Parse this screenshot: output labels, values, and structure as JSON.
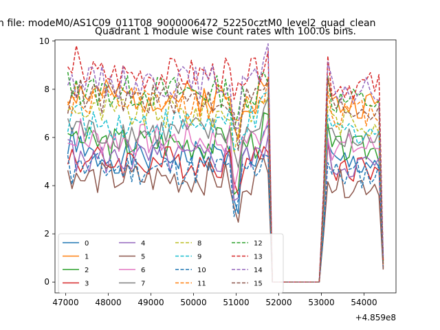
{
  "chart_data": {
    "type": "line",
    "suptitle": "n file: modeM0/AS1C09_011T08_9000006472_52250cztM0_level2_quad_clean",
    "title": "Quadrant 1 module wise count rates with 100.0s bins.",
    "xlabel": "",
    "ylabel": "",
    "offset_text": "+4.859e8",
    "xlim": [
      46750,
      54750
    ],
    "ylim": [
      -0.45,
      10.05
    ],
    "x_ticks": [
      47000,
      48000,
      49000,
      50000,
      51000,
      52000,
      53000,
      54000
    ],
    "y_ticks": [
      0,
      2,
      4,
      6,
      8,
      10
    ],
    "grid": false,
    "legend": {
      "position": "lower-left",
      "columns": 4
    },
    "x_segments": [
      {
        "start": 47050,
        "end": 51750,
        "step": 100
      },
      {
        "start": 51850,
        "end": 52950,
        "step": 100
      },
      {
        "start": 53050,
        "end": 54450,
        "step": 100
      }
    ],
    "series": [
      {
        "name": "0",
        "color": "#1f77b4",
        "dash": "solid",
        "base": 5.2,
        "seed": 1
      },
      {
        "name": "1",
        "color": "#ff7f0e",
        "dash": "solid",
        "base": 7.7,
        "seed": 2
      },
      {
        "name": "2",
        "color": "#2ca02c",
        "dash": "solid",
        "base": 5.8,
        "seed": 3
      },
      {
        "name": "3",
        "color": "#d62728",
        "dash": "solid",
        "base": 5.0,
        "seed": 4
      },
      {
        "name": "4",
        "color": "#9467bd",
        "dash": "solid",
        "base": 5.1,
        "seed": 5
      },
      {
        "name": "5",
        "color": "#8c564b",
        "dash": "solid",
        "base": 4.3,
        "seed": 6
      },
      {
        "name": "6",
        "color": "#e377c2",
        "dash": "solid",
        "base": 5.9,
        "seed": 7
      },
      {
        "name": "7",
        "color": "#7f7f7f",
        "dash": "solid",
        "base": 6.2,
        "seed": 8
      },
      {
        "name": "8",
        "color": "#bcbd22",
        "dash": "dashed",
        "base": 7.0,
        "seed": 9
      },
      {
        "name": "9",
        "color": "#17becf",
        "dash": "dashed",
        "base": 6.6,
        "seed": 10
      },
      {
        "name": "10",
        "color": "#1f77b4",
        "dash": "dashed",
        "base": 4.7,
        "seed": 11
      },
      {
        "name": "11",
        "color": "#ff7f0e",
        "dash": "dashed",
        "base": 7.4,
        "seed": 12
      },
      {
        "name": "12",
        "color": "#2ca02c",
        "dash": "dashed",
        "base": 7.9,
        "seed": 13
      },
      {
        "name": "13",
        "color": "#d62728",
        "dash": "dashed",
        "base": 8.6,
        "seed": 14
      },
      {
        "name": "14",
        "color": "#9467bd",
        "dash": "dashed",
        "base": 8.3,
        "seed": 15
      },
      {
        "name": "15",
        "color": "#8c564b",
        "dash": "dashed",
        "base": 7.6,
        "seed": 16
      }
    ]
  }
}
